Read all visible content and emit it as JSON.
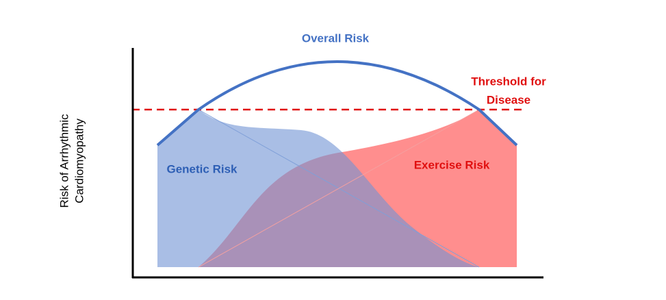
{
  "title": "Overall Risk",
  "threshold_label": [
    "Threshold for",
    "Disease"
  ],
  "genetic_label": "Genetic Risk",
  "exercise_label": "Exercise Risk",
  "y_axis_label": [
    "Risk of Arrhythmic",
    "Cardiomyopathy"
  ]
}
